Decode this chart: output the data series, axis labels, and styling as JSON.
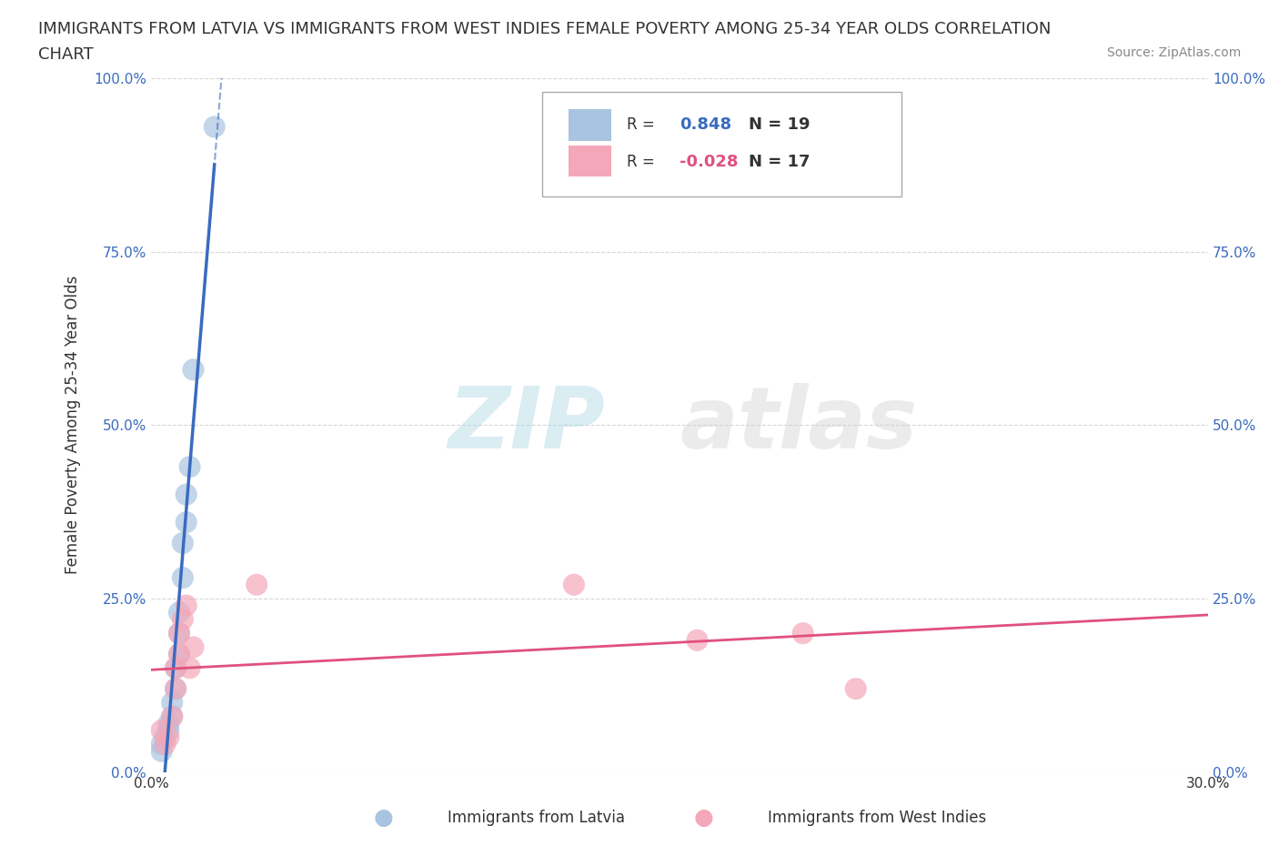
{
  "title_line1": "IMMIGRANTS FROM LATVIA VS IMMIGRANTS FROM WEST INDIES FEMALE POVERTY AMONG 25-34 YEAR OLDS CORRELATION",
  "title_line2": "CHART",
  "source_text": "Source: ZipAtlas.com",
  "ylabel": "Female Poverty Among 25-34 Year Olds",
  "xlabel_latvia": "Immigrants from Latvia",
  "xlabel_west_indies": "Immigrants from West Indies",
  "xlim": [
    0,
    0.3
  ],
  "ylim": [
    0,
    1.0
  ],
  "xticks": [
    0.0,
    0.05,
    0.1,
    0.15,
    0.2,
    0.25,
    0.3
  ],
  "xticklabels": [
    "0.0%",
    "",
    "",
    "",
    "",
    "",
    "30.0%"
  ],
  "yticks": [
    0.0,
    0.25,
    0.5,
    0.75,
    1.0
  ],
  "yticklabels": [
    "0.0%",
    "25.0%",
    "50.0%",
    "75.0%",
    "100.0%"
  ],
  "latvia_color": "#a8c4e0",
  "latvia_line_color": "#3a6bbf",
  "west_indies_color": "#f4a7b8",
  "west_indies_line_color": "#e05080",
  "latvia_R": 0.848,
  "latvia_N": 19,
  "west_indies_R": -0.028,
  "west_indies_N": 17,
  "latvia_x": [
    0.003,
    0.003,
    0.004,
    0.005,
    0.005,
    0.006,
    0.006,
    0.007,
    0.007,
    0.008,
    0.008,
    0.008,
    0.009,
    0.009,
    0.01,
    0.01,
    0.011,
    0.012,
    0.018
  ],
  "latvia_y": [
    0.03,
    0.04,
    0.05,
    0.06,
    0.07,
    0.08,
    0.1,
    0.12,
    0.15,
    0.17,
    0.2,
    0.23,
    0.28,
    0.33,
    0.36,
    0.4,
    0.44,
    0.58,
    0.93
  ],
  "west_indies_x": [
    0.003,
    0.004,
    0.005,
    0.006,
    0.007,
    0.007,
    0.008,
    0.008,
    0.009,
    0.01,
    0.011,
    0.012,
    0.03,
    0.12,
    0.155,
    0.185,
    0.2
  ],
  "west_indies_y": [
    0.06,
    0.04,
    0.05,
    0.08,
    0.12,
    0.15,
    0.17,
    0.2,
    0.22,
    0.24,
    0.15,
    0.18,
    0.27,
    0.27,
    0.19,
    0.2,
    0.12
  ],
  "background_color": "#ffffff",
  "grid_color": "#cccccc"
}
